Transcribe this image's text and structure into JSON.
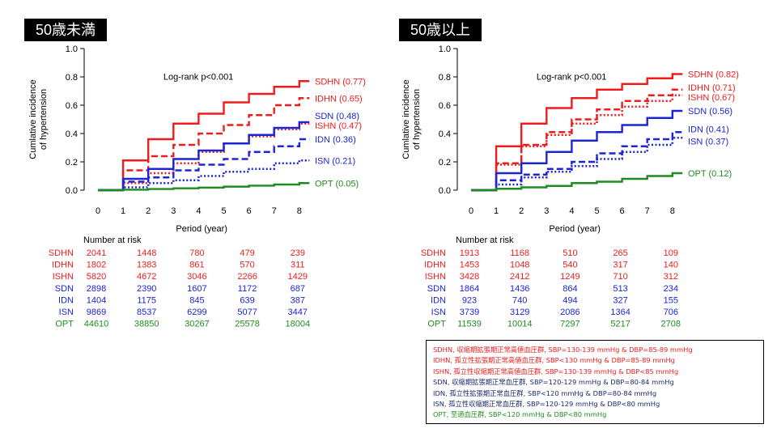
{
  "colors": {
    "red": "#ee1c1c",
    "blue": "#1c24d6",
    "green": "#1e8c1e",
    "navy": "#1a2a6e"
  },
  "chart_data": [
    {
      "type": "line",
      "title": "50歳未満",
      "xlabel": "Period (year)",
      "ylabel": "Cumlative incidence of hypertension",
      "xticks": [
        0,
        1,
        2,
        3,
        4,
        5,
        6,
        7,
        8
      ],
      "yticks": [
        "0.0",
        "0.2",
        "0.4",
        "0.6",
        "0.8",
        "1.0"
      ],
      "xlim": [
        0,
        8.5
      ],
      "ylim": [
        0,
        1.0
      ],
      "annotation": "Log-rank p<0.001",
      "series": [
        {
          "name": "SDHN",
          "label": "SDHN (0.77)",
          "color": "#ee1c1c",
          "dash": "solid",
          "x": [
            1,
            2,
            3,
            4,
            5,
            6,
            7,
            8
          ],
          "y": [
            0.21,
            0.36,
            0.47,
            0.54,
            0.62,
            0.68,
            0.73,
            0.77
          ]
        },
        {
          "name": "IDHN",
          "label": "IDHN (0.65)",
          "color": "#ee1c1c",
          "dash": "dash",
          "x": [
            1,
            2,
            3,
            4,
            5,
            6,
            7,
            8
          ],
          "y": [
            0.14,
            0.24,
            0.32,
            0.4,
            0.46,
            0.53,
            0.6,
            0.65
          ]
        },
        {
          "name": "ISHN",
          "label": "ISHN (0.47)",
          "color": "#ee1c1c",
          "dash": "dot",
          "x": [
            1,
            2,
            3,
            4,
            5,
            6,
            7,
            8
          ],
          "y": [
            0.05,
            0.12,
            0.19,
            0.27,
            0.33,
            0.38,
            0.43,
            0.47
          ]
        },
        {
          "name": "SDN",
          "label": "SDN (0.48)",
          "color": "#1c24d6",
          "dash": "solid",
          "x": [
            1,
            2,
            3,
            4,
            5,
            6,
            7,
            8
          ],
          "y": [
            0.08,
            0.15,
            0.22,
            0.28,
            0.33,
            0.39,
            0.44,
            0.48
          ]
        },
        {
          "name": "IDN",
          "label": "IDN (0.36)",
          "color": "#1c24d6",
          "dash": "dash",
          "x": [
            1,
            2,
            3,
            4,
            5,
            6,
            7,
            8
          ],
          "y": [
            0.06,
            0.09,
            0.14,
            0.18,
            0.22,
            0.27,
            0.31,
            0.36
          ]
        },
        {
          "name": "ISN",
          "label": "ISN (0.21)",
          "color": "#1c24d6",
          "dash": "dot",
          "x": [
            1,
            2,
            3,
            4,
            5,
            6,
            7,
            8
          ],
          "y": [
            0.02,
            0.05,
            0.07,
            0.1,
            0.13,
            0.15,
            0.19,
            0.21
          ]
        },
        {
          "name": "OPT",
          "label": "OPT (0.05)",
          "color": "#1e8c1e",
          "dash": "solid",
          "x": [
            1,
            2,
            3,
            4,
            5,
            6,
            7,
            8
          ],
          "y": [
            0.003,
            0.008,
            0.013,
            0.018,
            0.025,
            0.032,
            0.04,
            0.05
          ]
        }
      ],
      "risk_title": "Number at risk",
      "risk_table": [
        {
          "name": "SDHN",
          "color": "#ee1c1c",
          "values": [
            "2041",
            "1448",
            "780",
            "479",
            "239"
          ]
        },
        {
          "name": "IDHN",
          "color": "#ee1c1c",
          "values": [
            "1802",
            "1383",
            "861",
            "570",
            "311"
          ]
        },
        {
          "name": "ISHN",
          "color": "#ee1c1c",
          "values": [
            "5820",
            "4672",
            "3046",
            "2266",
            "1429"
          ]
        },
        {
          "name": "SDN",
          "color": "#1c24d6",
          "values": [
            "2898",
            "2390",
            "1607",
            "1172",
            "687"
          ]
        },
        {
          "name": "IDN",
          "color": "#1c24d6",
          "values": [
            "1404",
            "1175",
            "845",
            "639",
            "387"
          ]
        },
        {
          "name": "ISN",
          "color": "#1c24d6",
          "values": [
            "9869",
            "8537",
            "6299",
            "5077",
            "3447"
          ]
        },
        {
          "name": "OPT",
          "color": "#1e8c1e",
          "values": [
            "44610",
            "38850",
            "30267",
            "25578",
            "18004"
          ]
        }
      ]
    },
    {
      "type": "line",
      "title": "50歳以上",
      "xlabel": "Period (year)",
      "ylabel": "Cumlative incidence of hypertension",
      "xticks": [
        0,
        1,
        2,
        3,
        4,
        5,
        6,
        7,
        8
      ],
      "yticks": [
        "0.0",
        "0.2",
        "0.4",
        "0.6",
        "0.8",
        "1.0"
      ],
      "xlim": [
        0,
        8.5
      ],
      "ylim": [
        0,
        1.0
      ],
      "annotation": "Log-rank p<0.001",
      "series": [
        {
          "name": "SDHN",
          "label": "SDHN (0.82)",
          "color": "#ee1c1c",
          "dash": "solid",
          "x": [
            1,
            2,
            3,
            4,
            5,
            6,
            7,
            8
          ],
          "y": [
            0.31,
            0.47,
            0.58,
            0.65,
            0.71,
            0.75,
            0.79,
            0.82
          ]
        },
        {
          "name": "IDHN",
          "label": "IDHN (0.71)",
          "color": "#ee1c1c",
          "dash": "dash",
          "x": [
            1,
            2,
            3,
            4,
            5,
            6,
            7,
            8
          ],
          "y": [
            0.19,
            0.32,
            0.41,
            0.5,
            0.57,
            0.63,
            0.67,
            0.71
          ]
        },
        {
          "name": "ISHN",
          "label": "ISHN (0.67)",
          "color": "#ee1c1c",
          "dash": "dot",
          "x": [
            1,
            2,
            3,
            4,
            5,
            6,
            7,
            8
          ],
          "y": [
            0.18,
            0.31,
            0.39,
            0.47,
            0.53,
            0.59,
            0.63,
            0.67
          ]
        },
        {
          "name": "SDN",
          "label": "SDN (0.56)",
          "color": "#1c24d6",
          "dash": "solid",
          "x": [
            1,
            2,
            3,
            4,
            5,
            6,
            7,
            8
          ],
          "y": [
            0.12,
            0.19,
            0.27,
            0.35,
            0.41,
            0.46,
            0.51,
            0.56
          ]
        },
        {
          "name": "IDN",
          "label": "IDN (0.41)",
          "color": "#1c24d6",
          "dash": "dash",
          "x": [
            1,
            2,
            3,
            4,
            5,
            6,
            7,
            8
          ],
          "y": [
            0.07,
            0.11,
            0.15,
            0.2,
            0.26,
            0.31,
            0.36,
            0.41
          ]
        },
        {
          "name": "ISN",
          "label": "ISN (0.37)",
          "color": "#1c24d6",
          "dash": "dot",
          "x": [
            1,
            2,
            3,
            4,
            5,
            6,
            7,
            8
          ],
          "y": [
            0.04,
            0.09,
            0.13,
            0.17,
            0.22,
            0.27,
            0.32,
            0.37
          ]
        },
        {
          "name": "OPT",
          "label": "OPT (0.12)",
          "color": "#1e8c1e",
          "dash": "solid",
          "x": [
            1,
            2,
            3,
            4,
            5,
            6,
            7,
            8
          ],
          "y": [
            0.01,
            0.02,
            0.03,
            0.05,
            0.06,
            0.08,
            0.1,
            0.12
          ]
        }
      ],
      "risk_title": "Number at risk",
      "risk_table": [
        {
          "name": "SDHN",
          "color": "#ee1c1c",
          "values": [
            "1913",
            "1168",
            "510",
            "265",
            "109"
          ]
        },
        {
          "name": "IDHN",
          "color": "#ee1c1c",
          "values": [
            "1453",
            "1048",
            "540",
            "317",
            "140"
          ]
        },
        {
          "name": "ISHN",
          "color": "#ee1c1c",
          "values": [
            "3428",
            "2412",
            "1249",
            "710",
            "312"
          ]
        },
        {
          "name": "SDN",
          "color": "#1c24d6",
          "values": [
            "1864",
            "1436",
            "864",
            "513",
            "234"
          ]
        },
        {
          "name": "IDN",
          "color": "#1c24d6",
          "values": [
            "923",
            "740",
            "494",
            "327",
            "155"
          ]
        },
        {
          "name": "ISN",
          "color": "#1c24d6",
          "values": [
            "3739",
            "3129",
            "2086",
            "1364",
            "706"
          ]
        },
        {
          "name": "OPT",
          "color": "#1e8c1e",
          "values": [
            "11539",
            "10014",
            "7297",
            "5217",
            "2708"
          ]
        }
      ]
    }
  ],
  "legend": [
    {
      "text": "SDHN, 収縮期拡張期正常高値血圧群, SBP=130-139 mmHg & DBP=85-89 mmHg",
      "color": "#ee1c1c"
    },
    {
      "text": "IDHN, 孤立性拡張期正常高値血圧群, SBP<130 mmHg & DBP=85-89 mmHg",
      "color": "#ee1c1c"
    },
    {
      "text": "ISHN, 孤立性収縮期正常高値血圧群, SBP=130-139 mmHg & DBP<85 mmHg",
      "color": "#ee1c1c"
    },
    {
      "text": "SDN, 収縮期拡張期正常血圧群, SBP=120-129 mmHg & DBP=80-84 mmHg",
      "color": "#1a2a6e"
    },
    {
      "text": "IDN, 孤立性拡張期正常血圧群, SBP<120 mmHg & DBP=80-84 mmHg",
      "color": "#1a2a6e"
    },
    {
      "text": "ISN, 孤立性収縮期正常血圧群, SBP=120-129 mmHg & DBP<80 mmHg",
      "color": "#1a2a6e"
    },
    {
      "text": "OPT, 至適血圧群, SBP<120 mmHg & DBP<80 mmHg",
      "color": "#1e8c1e"
    }
  ]
}
